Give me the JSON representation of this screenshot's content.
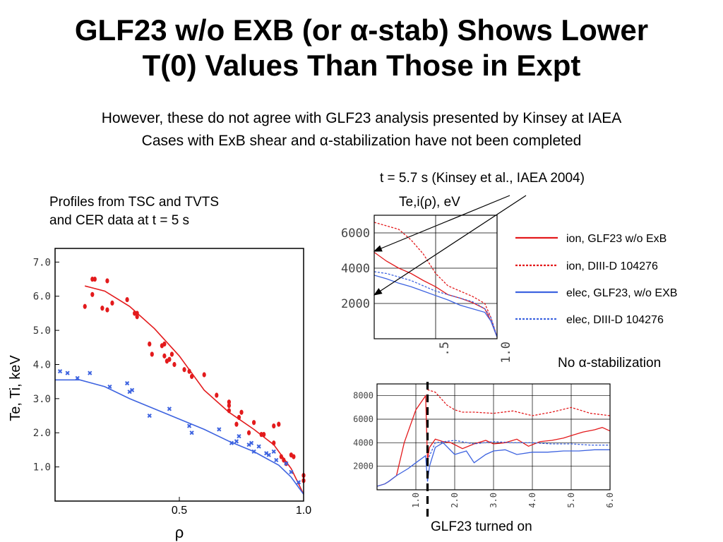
{
  "slide": {
    "title_line1": "GLF23 w/o EXB (or α-stab) Shows Lower",
    "title_line2": "T(0) Values Than Those in Expt",
    "subtitle_line1": "However, these do not agree with GLF23 analysis presented by Kinsey at IAEA",
    "subtitle_line2": "Cases with ExB shear and α-stabilization have not been completed",
    "profiles_note_line1": "Profiles from TSC and TVTS",
    "profiles_note_line2": "and CER data at t = 5 s",
    "kinsey_label": "t = 5.7 s (Kinsey et al., IAEA 2004)",
    "no_alpha_label": "No α-stabilization",
    "glf_on_label": "GLF23 turned on"
  },
  "colors": {
    "ion": "#e31a1c",
    "elec": "#3d63e0",
    "grid": "#000000"
  },
  "chart_data": [
    {
      "id": "main-profile",
      "type": "scatter",
      "title": "",
      "xlabel": "ρ",
      "ylabel": "Te, Ti, keV",
      "xlim": [
        0,
        1.0
      ],
      "ylim": [
        0,
        7.4
      ],
      "xticks": [
        "0.5",
        "1.0"
      ],
      "yticks": [
        "1.0",
        "2.0",
        "3.0",
        "4.0",
        "5.0",
        "6.0",
        "7.0"
      ],
      "series": [
        {
          "color": "#e31a1c",
          "kind": "points",
          "x": [
            0.12,
            0.15,
            0.15,
            0.16,
            0.19,
            0.21,
            0.21,
            0.23,
            0.29,
            0.32,
            0.33,
            0.33,
            0.38,
            0.39,
            0.43,
            0.44,
            0.44,
            0.45,
            0.46,
            0.47,
            0.48,
            0.52,
            0.54,
            0.55,
            0.6,
            0.65,
            0.7,
            0.7,
            0.7,
            0.73,
            0.74,
            0.75,
            0.78,
            0.8,
            0.83,
            0.84,
            0.88,
            0.88,
            0.9,
            0.91,
            0.92,
            0.93,
            0.95,
            0.96,
            1.0,
            1.0
          ],
          "y": [
            5.7,
            6.05,
            6.5,
            6.5,
            5.65,
            5.6,
            6.45,
            5.8,
            5.9,
            5.5,
            5.5,
            5.4,
            4.6,
            4.3,
            4.55,
            4.6,
            4.25,
            4.1,
            4.15,
            4.3,
            4.0,
            3.85,
            3.8,
            3.65,
            3.7,
            3.1,
            2.9,
            2.8,
            2.65,
            2.25,
            2.45,
            2.6,
            2.0,
            2.3,
            1.95,
            1.95,
            2.2,
            1.7,
            2.25,
            1.3,
            1.2,
            1.1,
            1.35,
            1.3,
            0.75,
            0.6
          ]
        },
        {
          "color": "#3d63e0",
          "kind": "points",
          "x": [
            0.02,
            0.05,
            0.09,
            0.14,
            0.22,
            0.29,
            0.3,
            0.31,
            0.38,
            0.46,
            0.54,
            0.55,
            0.66,
            0.71,
            0.73,
            0.74,
            0.78,
            0.79,
            0.8,
            0.82,
            0.85,
            0.86,
            0.88,
            0.89,
            0.93,
            0.95,
            0.98
          ],
          "y": [
            3.8,
            3.75,
            3.6,
            3.75,
            3.35,
            3.45,
            3.2,
            3.25,
            2.5,
            2.7,
            2.2,
            2.0,
            2.1,
            1.7,
            1.75,
            1.9,
            1.65,
            1.7,
            1.45,
            1.6,
            1.4,
            1.35,
            1.45,
            1.2,
            1.1,
            0.85,
            0.55
          ]
        },
        {
          "color": "#e31a1c",
          "kind": "line",
          "x": [
            0.12,
            0.2,
            0.3,
            0.4,
            0.5,
            0.6,
            0.7,
            0.8,
            0.88,
            0.95,
            1.0
          ],
          "y": [
            6.3,
            6.15,
            5.7,
            5.05,
            4.25,
            3.25,
            2.6,
            2.1,
            1.65,
            0.95,
            0.2
          ]
        },
        {
          "color": "#3d63e0",
          "kind": "line",
          "x": [
            0.0,
            0.1,
            0.2,
            0.3,
            0.4,
            0.5,
            0.6,
            0.7,
            0.8,
            0.9,
            0.95,
            1.0
          ],
          "y": [
            3.55,
            3.55,
            3.35,
            3.0,
            2.7,
            2.4,
            2.1,
            1.75,
            1.45,
            1.05,
            0.7,
            0.2
          ]
        }
      ]
    },
    {
      "id": "kinsey-profile",
      "type": "line",
      "title": "Te,i(ρ), eV",
      "xlim": [
        0,
        1.0
      ],
      "ylim": [
        0,
        7000
      ],
      "xticks": [
        ".5",
        "1.0"
      ],
      "yticks": [
        "2000",
        "4000",
        "6000"
      ],
      "series": [
        {
          "name": "ion, GLF23 w/o ExB",
          "color": "#e31a1c",
          "dash": false,
          "x": [
            0,
            0.1,
            0.2,
            0.3,
            0.4,
            0.5,
            0.6,
            0.7,
            0.8,
            0.9,
            0.95,
            1.0
          ],
          "y": [
            4900,
            4400,
            4000,
            3700,
            3300,
            2950,
            2500,
            2300,
            2050,
            1700,
            1000,
            100
          ]
        },
        {
          "name": "ion, DIII-D 104276",
          "color": "#e31a1c",
          "dash": true,
          "x": [
            0,
            0.1,
            0.2,
            0.3,
            0.4,
            0.5,
            0.6,
            0.7,
            0.8,
            0.9,
            0.95,
            1.0
          ],
          "y": [
            6600,
            6400,
            6200,
            5600,
            4800,
            3700,
            3000,
            2700,
            2400,
            2000,
            1200,
            100
          ]
        },
        {
          "name": "elec, GLF23, w/o EXB",
          "color": "#3d63e0",
          "dash": false,
          "x": [
            0,
            0.1,
            0.2,
            0.3,
            0.4,
            0.5,
            0.6,
            0.7,
            0.8,
            0.9,
            0.95,
            1.0
          ],
          "y": [
            3600,
            3400,
            3150,
            2950,
            2700,
            2450,
            2200,
            1900,
            1700,
            1500,
            1000,
            100
          ]
        },
        {
          "name": "elec, DIII-D 104276",
          "color": "#3d63e0",
          "dash": true,
          "x": [
            0,
            0.1,
            0.2,
            0.3,
            0.4,
            0.5,
            0.6,
            0.7,
            0.8,
            0.9,
            0.95,
            1.0
          ],
          "y": [
            3800,
            3700,
            3500,
            3300,
            3000,
            2700,
            2500,
            2300,
            2100,
            1700,
            1200,
            100
          ]
        }
      ]
    },
    {
      "id": "time-trace",
      "type": "line",
      "title": "",
      "xlim": [
        0,
        6.0
      ],
      "ylim": [
        0,
        9000
      ],
      "xticks": [
        "1.0",
        "2.0",
        "3.0",
        "4.0",
        "5.0",
        "6.0"
      ],
      "yticks": [
        "2000",
        "4000",
        "6000",
        "8000"
      ],
      "marker_x": 1.3,
      "series": [
        {
          "color": "#e31a1c",
          "dash": false,
          "x": [
            0,
            0.2,
            0.3,
            0.5,
            0.7,
            1.0,
            1.25,
            1.3,
            1.35,
            1.5,
            1.7,
            1.9,
            2.2,
            2.5,
            2.8,
            3.0,
            3.3,
            3.6,
            3.9,
            4.2,
            4.5,
            4.8,
            5.0,
            5.3,
            5.6,
            5.8,
            6.0
          ],
          "y": [
            300,
            500,
            700,
            1200,
            4000,
            6800,
            8000,
            2500,
            3600,
            4300,
            4100,
            4000,
            3500,
            3900,
            4200,
            3900,
            4000,
            4300,
            3700,
            4100,
            4200,
            4400,
            4600,
            4900,
            5100,
            5300,
            5000
          ]
        },
        {
          "color": "#e31a1c",
          "dash": true,
          "x": [
            1.3,
            1.5,
            1.8,
            2.0,
            2.2,
            2.5,
            3.0,
            3.5,
            4.0,
            4.5,
            5.0,
            5.5,
            6.0
          ],
          "y": [
            8500,
            8300,
            7200,
            6800,
            6600,
            6600,
            6500,
            6700,
            6300,
            6600,
            7000,
            6500,
            6300
          ]
        },
        {
          "color": "#3d63e0",
          "dash": false,
          "x": [
            0,
            0.2,
            0.3,
            0.5,
            0.8,
            1.0,
            1.25,
            1.3,
            1.35,
            1.5,
            1.7,
            2.0,
            2.3,
            2.5,
            2.8,
            3.0,
            3.3,
            3.6,
            4.0,
            4.4,
            4.8,
            5.2,
            5.6,
            6.0
          ],
          "y": [
            300,
            500,
            700,
            1200,
            1800,
            2300,
            2900,
            700,
            2000,
            3600,
            4000,
            3000,
            3300,
            2300,
            3000,
            3300,
            3400,
            3000,
            3200,
            3200,
            3300,
            3300,
            3400,
            3400
          ]
        },
        {
          "color": "#3d63e0",
          "dash": true,
          "x": [
            1.3,
            1.5,
            2.0,
            2.5,
            3.0,
            3.5,
            4.0,
            4.5,
            5.0,
            5.5,
            6.0
          ],
          "y": [
            2500,
            4000,
            4200,
            3900,
            4100,
            4000,
            4000,
            3900,
            3900,
            3800,
            3800
          ]
        }
      ]
    }
  ]
}
